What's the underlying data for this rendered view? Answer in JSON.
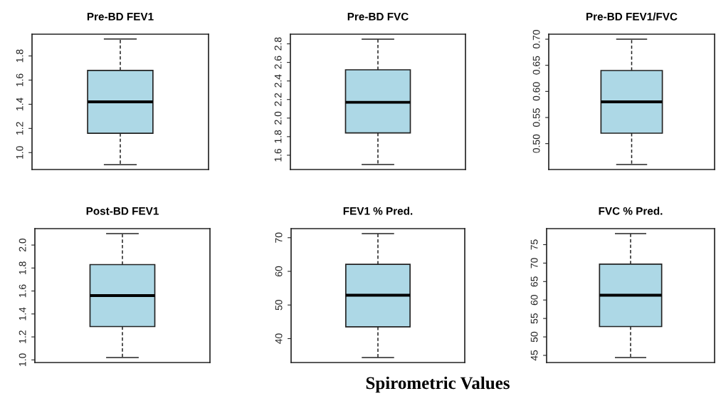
{
  "chart_data": [
    {
      "type": "box",
      "title": "Pre-BD FEV1",
      "categories": [
        null
      ],
      "color": "#add8e6",
      "boxes": [
        {
          "low": 0.9,
          "q1": 1.16,
          "median": 1.42,
          "q3": 1.68,
          "high": 1.94
        }
      ],
      "ylim": [
        0.86,
        1.98
      ],
      "yticks": [
        {
          "value": 1.0,
          "label": "1.0"
        },
        {
          "value": 1.2,
          "label": "1.2"
        },
        {
          "value": 1.4,
          "label": "1.4"
        },
        {
          "value": 1.6,
          "label": "1.6"
        },
        {
          "value": 1.8,
          "label": "1.8"
        }
      ],
      "tick_labels": "y"
    },
    {
      "type": "box",
      "title": "Pre-BD FVC",
      "categories": [
        null
      ],
      "color": "#add8e6",
      "boxes": [
        {
          "low": 1.5,
          "q1": 1.84,
          "median": 2.17,
          "q3": 2.52,
          "high": 2.85
        }
      ],
      "ylim": [
        1.446,
        2.904
      ],
      "yticks": [
        {
          "value": 1.6,
          "label": "1.6"
        },
        {
          "value": 1.8,
          "label": "1.8"
        },
        {
          "value": 2.0,
          "label": "2.0"
        },
        {
          "value": 2.2,
          "label": "2.2"
        },
        {
          "value": 2.4,
          "label": "2.4"
        },
        {
          "value": 2.6,
          "label": "2.6"
        },
        {
          "value": 2.8,
          "label": "2.8"
        }
      ],
      "tick_labels": "y"
    },
    {
      "type": "box",
      "title": "Pre-BD FEV1/FVC",
      "categories": [
        null
      ],
      "color": "#add8e6",
      "boxes": [
        {
          "low": 0.46,
          "q1": 0.52,
          "median": 0.58,
          "q3": 0.64,
          "high": 0.7
        }
      ],
      "ylim": [
        0.4504,
        0.7096
      ],
      "yticks": [
        {
          "value": 0.5,
          "label": "0.50"
        },
        {
          "value": 0.55,
          "label": "0.55"
        },
        {
          "value": 0.6,
          "label": "0.60"
        },
        {
          "value": 0.65,
          "label": "0.65"
        },
        {
          "value": 0.7,
          "label": "0.70"
        }
      ],
      "tick_labels": "y"
    },
    {
      "type": "box",
      "title": "Post-BD FEV1",
      "categories": [
        null
      ],
      "color": "#add8e6",
      "boxes": [
        {
          "low": 1.02,
          "q1": 1.29,
          "median": 1.56,
          "q3": 1.83,
          "high": 2.1
        }
      ],
      "ylim": [
        0.977,
        2.143
      ],
      "yticks": [
        {
          "value": 1.0,
          "label": "1.0"
        },
        {
          "value": 1.2,
          "label": "1.2"
        },
        {
          "value": 1.4,
          "label": "1.4"
        },
        {
          "value": 1.6,
          "label": "1.6"
        },
        {
          "value": 1.8,
          "label": "1.8"
        },
        {
          "value": 2.0,
          "label": "2.0"
        }
      ],
      "tick_labels": "y"
    },
    {
      "type": "box",
      "title": "FEV1 % Pred.",
      "categories": [
        null
      ],
      "color": "#add8e6",
      "boxes": [
        {
          "low": 34.4,
          "q1": 43.5,
          "median": 52.9,
          "q3": 62.1,
          "high": 71.2
        }
      ],
      "ylim": [
        32.9,
        72.7
      ],
      "yticks": [
        40,
        50,
        60,
        70
      ],
      "tick_labels": "y"
    },
    {
      "type": "box",
      "title": "FVC % Pred.",
      "categories": [
        null
      ],
      "color": "#add8e6",
      "boxes": [
        {
          "low": 44.4,
          "q1": 52.8,
          "median": 61.3,
          "q3": 69.7,
          "high": 78.0
        }
      ],
      "ylim": [
        43.06,
        79.34
      ],
      "yticks": [
        45,
        50,
        55,
        60,
        65,
        70,
        75
      ],
      "tick_labels": "y",
      "annotations": [
        "Spirometric Values"
      ]
    }
  ]
}
